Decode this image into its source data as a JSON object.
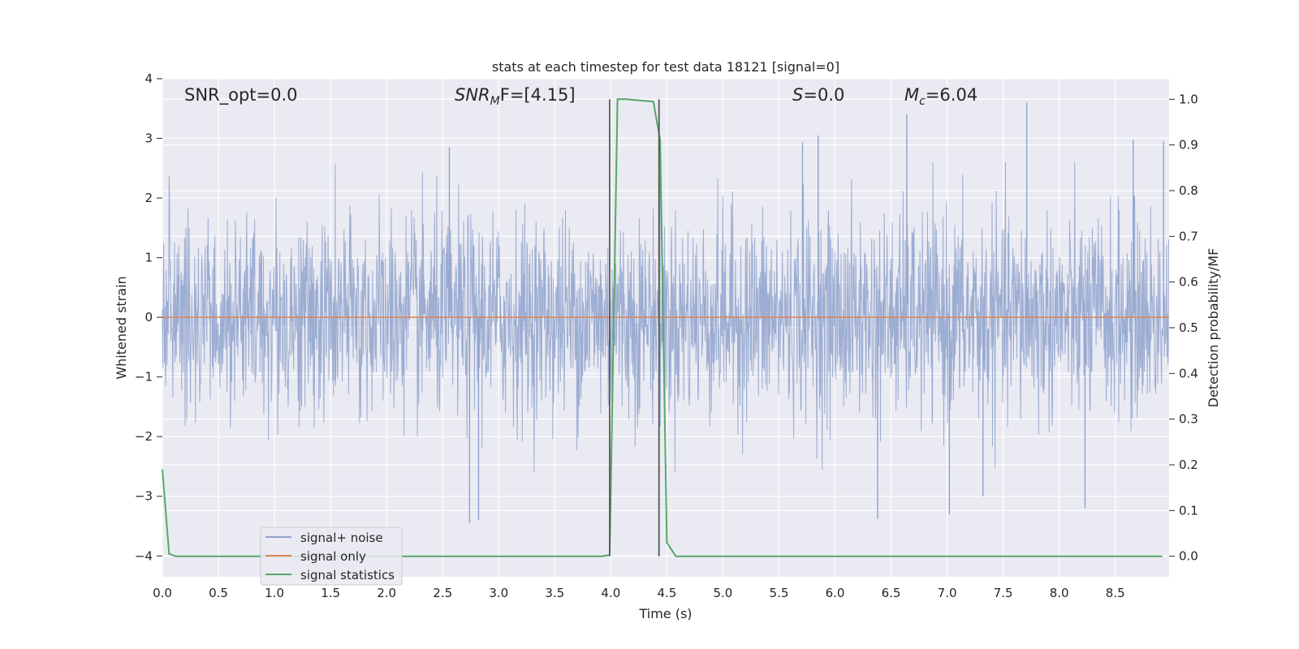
{
  "chart_data": {
    "type": "line",
    "title": "stats at each timestep for test data 18121 [signal=0]",
    "xlabel": "Time (s)",
    "ylabel_left": "Whitened strain",
    "ylabel_right": "Detection probability/MF",
    "xlim": [
      0.0,
      8.98
    ],
    "ylim_left": [
      -4.35,
      4.0
    ],
    "ylim_right": [
      -0.045,
      1.045
    ],
    "x_ticks": [
      0.0,
      0.5,
      1.0,
      1.5,
      2.0,
      2.5,
      3.0,
      3.5,
      4.0,
      4.5,
      5.0,
      5.5,
      6.0,
      6.5,
      7.0,
      7.5,
      8.0,
      8.5
    ],
    "x_tick_labels": [
      "0.0",
      "0.5",
      "1.0",
      "1.5",
      "2.0",
      "2.5",
      "3.0",
      "3.5",
      "4.0",
      "4.5",
      "5.0",
      "5.5",
      "6.0",
      "6.5",
      "7.0",
      "7.5",
      "8.0",
      "8.5"
    ],
    "y_ticks_left": [
      -4,
      -3,
      -2,
      -1,
      0,
      1,
      2,
      3,
      4
    ],
    "y_tick_labels_left": [
      "−4",
      "−3",
      "−2",
      "−1",
      "0",
      "1",
      "2",
      "3",
      "4"
    ],
    "y_ticks_right": [
      0.0,
      0.1,
      0.2,
      0.3,
      0.4,
      0.5,
      0.6,
      0.7,
      0.8,
      0.9,
      1.0
    ],
    "y_tick_labels_right": [
      "0.0",
      "0.1",
      "0.2",
      "0.3",
      "0.4",
      "0.5",
      "0.6",
      "0.7",
      "0.8",
      "0.9",
      "1.0"
    ],
    "grid": true,
    "legend_position": "lower-left",
    "annotations": {
      "snr_opt": "SNR_opt=0.0",
      "snr_mf_main": "SNR",
      "snr_mf_sub": "M",
      "snr_mf_rest": "F=[4.15]",
      "s_main": "S",
      "s_rest": "=0.0",
      "mc_main": "M",
      "mc_sub": "c",
      "mc_rest": "=6.04"
    },
    "vertical_markers": [
      3.99,
      4.43
    ],
    "series": [
      {
        "name": "signal+ noise",
        "color": "#8ea2cc",
        "axis": "left",
        "description_range": [
          -3.5,
          3.6
        ],
        "peaks": [
          {
            "x": 2.56,
            "y": 2.85
          },
          {
            "x": 2.74,
            "y": -3.45
          },
          {
            "x": 2.82,
            "y": -3.4
          },
          {
            "x": 5.71,
            "y": 2.93
          },
          {
            "x": 5.85,
            "y": 3.05
          },
          {
            "x": 6.38,
            "y": -3.38
          },
          {
            "x": 6.64,
            "y": 3.4
          },
          {
            "x": 7.02,
            "y": -3.3
          },
          {
            "x": 7.32,
            "y": -3.0
          },
          {
            "x": 7.71,
            "y": 3.6
          },
          {
            "x": 8.23,
            "y": -3.2
          },
          {
            "x": 8.66,
            "y": 2.98
          },
          {
            "x": 8.93,
            "y": 2.95
          }
        ]
      },
      {
        "name": "signal only",
        "color": "#dd8452",
        "axis": "left",
        "x": [
          0.0,
          8.98
        ],
        "y": [
          0.0,
          0.0
        ]
      },
      {
        "name": "signal statistics",
        "color": "#55a868",
        "axis": "right",
        "x": [
          0.0,
          0.06,
          0.12,
          0.5,
          1.0,
          2.0,
          3.0,
          3.92,
          3.99,
          4.06,
          4.13,
          4.38,
          4.44,
          4.5,
          4.58,
          5.0,
          6.0,
          7.0,
          8.0,
          8.92
        ],
        "y": [
          0.19,
          0.005,
          0.0,
          0.0,
          0.0,
          0.0,
          0.0,
          0.0,
          0.003,
          1.0,
          1.0,
          0.995,
          0.91,
          0.03,
          0.0,
          0.0,
          0.0,
          0.0,
          0.0,
          0.0
        ]
      }
    ]
  }
}
